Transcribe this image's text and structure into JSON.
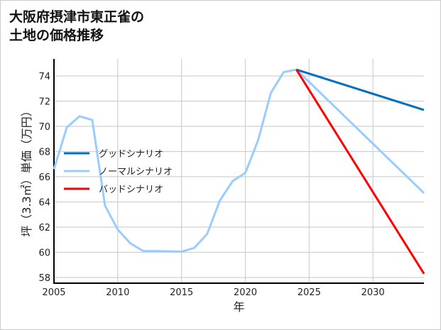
{
  "chart_data": {
    "type": "line",
    "title": [
      "大阪府摂津市東正雀の",
      "土地の価格推移"
    ],
    "xlabel": "年",
    "ylabel": "坪（3.3㎡）単価（万円）",
    "xlim": [
      2005,
      2034
    ],
    "ylim": [
      57.55,
      75.35
    ],
    "xticks": [
      2005,
      2010,
      2015,
      2020,
      2025,
      2030
    ],
    "yticks": [
      58,
      60,
      62,
      64,
      66,
      68,
      70,
      72,
      74
    ],
    "grid": true,
    "legend_position": "center-left",
    "series": [
      {
        "name": "グッドシナリオ",
        "color": "#0070c0",
        "x": [
          2024,
          2034
        ],
        "values": [
          74.5,
          71.3
        ]
      },
      {
        "name": "ノーマルシナリオ",
        "color": "#99ccff",
        "x": [
          2005,
          2006,
          2007,
          2008,
          2009,
          2010,
          2011,
          2012,
          2013,
          2014,
          2015,
          2016,
          2017,
          2018,
          2019,
          2020,
          2021,
          2022,
          2023,
          2024,
          2034
        ],
        "values": [
          66.6,
          69.9,
          70.8,
          70.5,
          63.7,
          61.8,
          60.7,
          60.1,
          60.1,
          60.08,
          60.05,
          60.35,
          61.45,
          64.1,
          65.65,
          66.3,
          68.9,
          72.65,
          74.3,
          74.5,
          64.7
        ]
      },
      {
        "name": "バッドシナリオ",
        "color": "#ff0000",
        "x": [
          2024,
          2034
        ],
        "values": [
          74.5,
          58.3
        ]
      }
    ]
  }
}
